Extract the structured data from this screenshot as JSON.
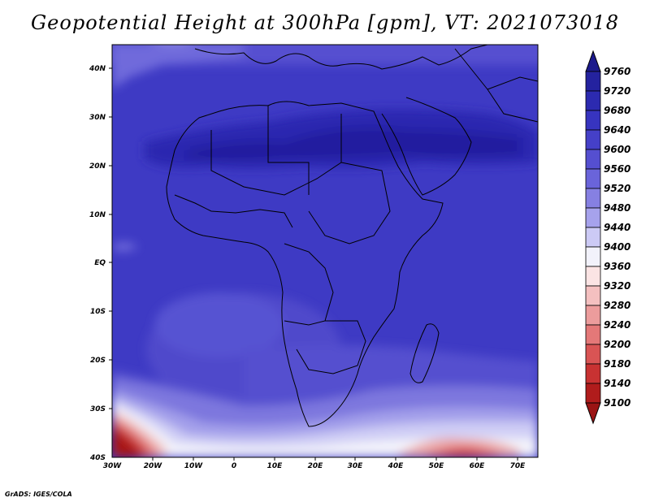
{
  "title": "Geopotential Height at 300hPa [gpm], VT: 2021073018",
  "credit": "GrADS: IGES/COLA",
  "axes": {
    "lat_labels": [
      "40N",
      "30N",
      "20N",
      "10N",
      "EQ",
      "10S",
      "20S",
      "30S",
      "40S"
    ],
    "lon_labels": [
      "30W",
      "20W",
      "10W",
      "0",
      "10E",
      "20E",
      "30E",
      "40E",
      "50E",
      "60E",
      "70E"
    ]
  },
  "colorbar": {
    "levels": [
      "9760",
      "9720",
      "9680",
      "9640",
      "9600",
      "9560",
      "9520",
      "9480",
      "9440",
      "9400",
      "9360",
      "9320",
      "9280",
      "9240",
      "9200",
      "9180",
      "9140",
      "9100"
    ],
    "colors": [
      "#1c1a8c",
      "#24229f",
      "#2c2ab0",
      "#3734bf",
      "#4540c8",
      "#554fd0",
      "#6a64da",
      "#8680e2",
      "#a6a2ec",
      "#cccaf5",
      "#f2f2fb",
      "#fbe4e4",
      "#f4c0c0",
      "#ec9c9c",
      "#e47878",
      "#d95454",
      "#c83232",
      "#b01c1c",
      "#9b1414"
    ]
  },
  "map": {
    "projection": "latlon",
    "lon_range": [
      -30,
      76
    ],
    "lat_range": [
      -40,
      45
    ]
  }
}
